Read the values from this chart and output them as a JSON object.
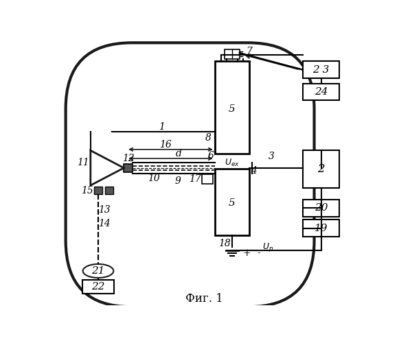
{
  "bg_color": "#ffffff",
  "line_color": "#000000",
  "fig_width": 5.81,
  "fig_height": 5.0,
  "dpi": 100,
  "title": "Фиг. 1"
}
